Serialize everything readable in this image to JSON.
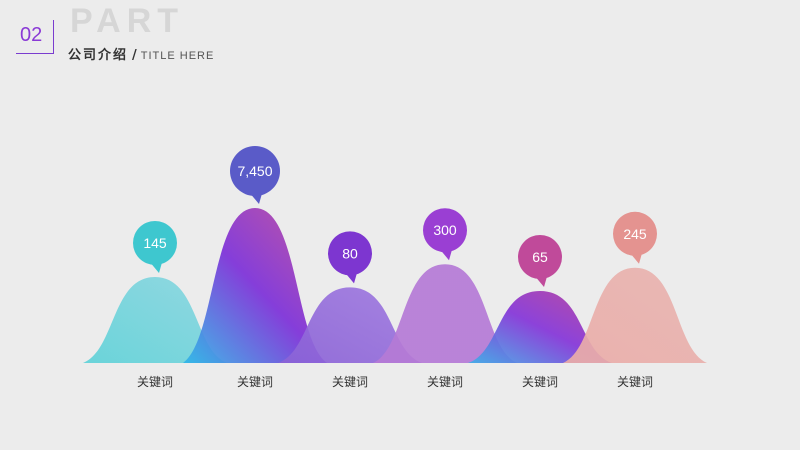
{
  "header": {
    "number": "02",
    "part": "PART",
    "title_cn": "公司介绍",
    "title_sep": "/",
    "title_en": "TITLE HERE"
  },
  "chart_data": {
    "type": "area",
    "categories": [
      "关键词",
      "关键词",
      "关键词",
      "关键词",
      "关键词",
      "关键词"
    ],
    "values": [
      145,
      7450,
      80,
      300,
      65,
      245
    ],
    "labels": [
      "145",
      "7,450",
      "80",
      "300",
      "65",
      "245"
    ],
    "colors": [
      [
        "#5fd2d8",
        "#8bd6e0"
      ],
      [
        "#2fb8e8",
        "#7c2fd8",
        "#c04a9a"
      ],
      [
        "#8a62d6",
        "#a07ae0"
      ],
      [
        "#b57ad6",
        "#b57ad6"
      ],
      [
        "#3fb0e8",
        "#8434d8",
        "#b93f98"
      ],
      [
        "#eaaca8",
        "#e8b4b0"
      ]
    ],
    "bubble_colors": [
      "#3ec7cf",
      "#5a5bc8",
      "#7d36d0",
      "#9a3fd3",
      "#c04a9a",
      "#e49390"
    ]
  }
}
